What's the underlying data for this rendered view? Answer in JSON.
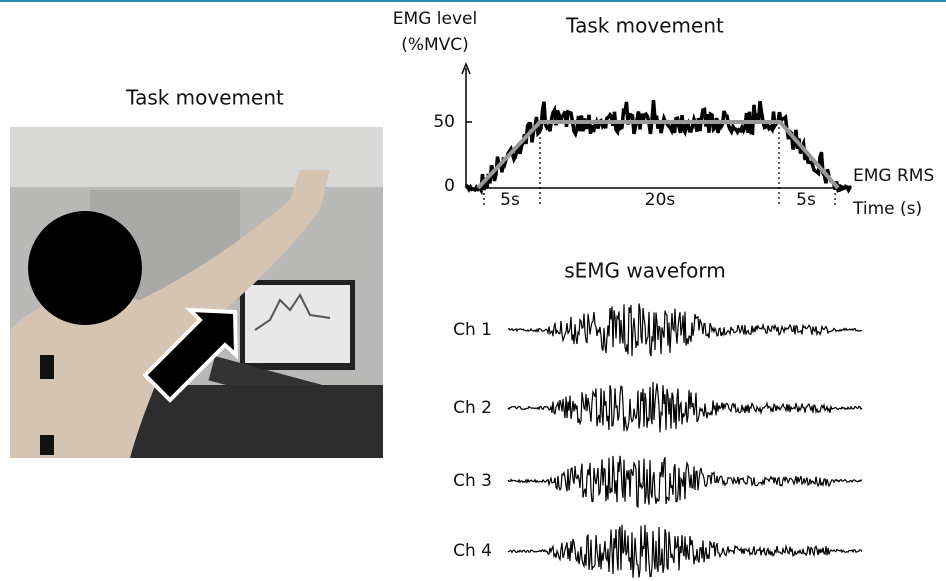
{
  "left_panel": {
    "title": "Task movement"
  },
  "rms_panel": {
    "title": "Task movement",
    "y_label_lines": [
      "EMG level",
      "(%MVC)"
    ],
    "y_ticks": [
      50,
      0
    ],
    "durations": [
      "5s",
      "20s",
      "5s"
    ],
    "series_label": "EMG RMS",
    "x_label": "Time (s)"
  },
  "waveform_panel": {
    "title": "sEMG waveform",
    "channels": [
      "Ch 1",
      "Ch 2",
      "Ch 3",
      "Ch 4"
    ]
  }
}
